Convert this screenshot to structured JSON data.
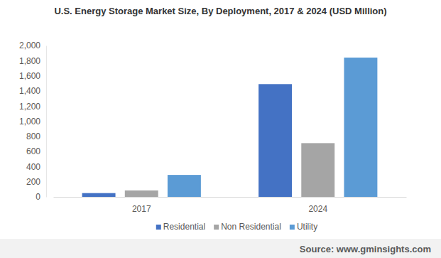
{
  "chart_data": {
    "type": "bar",
    "title": "U.S. Energy Storage Market Size, By Deployment, 2017 & 2024 (USD Million)",
    "source": "Source: www.gminsights.com",
    "categories": [
      "2017",
      "2024"
    ],
    "series": [
      {
        "name": "Residential",
        "color": "#4472c4",
        "values": [
          50,
          1490
        ]
      },
      {
        "name": "Non Residential",
        "color": "#a5a5a5",
        "values": [
          85,
          710
        ]
      },
      {
        "name": "Utility",
        "color": "#5b9bd5",
        "values": [
          290,
          1840
        ]
      }
    ],
    "ylim": [
      0,
      2000
    ],
    "yticks": [
      0,
      200,
      400,
      600,
      800,
      {
        "value": 1000,
        "label": "1,000"
      },
      {
        "value": 1200,
        "label": "1,200"
      },
      {
        "value": 1400,
        "label": "1,400"
      },
      {
        "value": 1600,
        "label": "1,600"
      },
      {
        "value": 1800,
        "label": "1,800"
      },
      {
        "value": 2000,
        "label": "2,000"
      }
    ],
    "grid": false,
    "legend": "bottom"
  }
}
